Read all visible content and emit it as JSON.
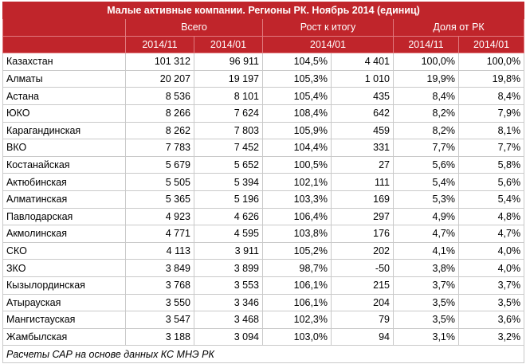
{
  "title": "Малые активные компании. Регионы РК. Ноябрь 2014 (единиц)",
  "groups": {
    "total": "Всего",
    "growth": "Рост к итогу",
    "share": "Доля от РК"
  },
  "subheaders": [
    "2014/11",
    "2014/01",
    "2014/01",
    "2014/11",
    "2014/01"
  ],
  "rows": [
    {
      "region": "Казахстан",
      "v1": "101 312",
      "v2": "96 911",
      "pct": "104,5%",
      "diff": "4 401",
      "s1": "100,0%",
      "s2": "100,0%"
    },
    {
      "region": "Алматы",
      "v1": "20 207",
      "v2": "19 197",
      "pct": "105,3%",
      "diff": "1 010",
      "s1": "19,9%",
      "s2": "19,8%"
    },
    {
      "region": "Астана",
      "v1": "8 536",
      "v2": "8 101",
      "pct": "105,4%",
      "diff": "435",
      "s1": "8,4%",
      "s2": "8,4%"
    },
    {
      "region": "ЮКО",
      "v1": "8 266",
      "v2": "7 624",
      "pct": "108,4%",
      "diff": "642",
      "s1": "8,2%",
      "s2": "7,9%"
    },
    {
      "region": "Карагандинская",
      "v1": "8 262",
      "v2": "7 803",
      "pct": "105,9%",
      "diff": "459",
      "s1": "8,2%",
      "s2": "8,1%"
    },
    {
      "region": "ВКО",
      "v1": "7 783",
      "v2": "7 452",
      "pct": "104,4%",
      "diff": "331",
      "s1": "7,7%",
      "s2": "7,7%"
    },
    {
      "region": "Костанайская",
      "v1": "5 679",
      "v2": "5 652",
      "pct": "100,5%",
      "diff": "27",
      "s1": "5,6%",
      "s2": "5,8%"
    },
    {
      "region": "Актюбинская",
      "v1": "5 505",
      "v2": "5 394",
      "pct": "102,1%",
      "diff": "111",
      "s1": "5,4%",
      "s2": "5,6%"
    },
    {
      "region": "Алматинская",
      "v1": "5 365",
      "v2": "5 196",
      "pct": "103,3%",
      "diff": "169",
      "s1": "5,3%",
      "s2": "5,4%"
    },
    {
      "region": "Павлодарская",
      "v1": "4 923",
      "v2": "4 626",
      "pct": "106,4%",
      "diff": "297",
      "s1": "4,9%",
      "s2": "4,8%"
    },
    {
      "region": "Акмолинская",
      "v1": "4 771",
      "v2": "4 595",
      "pct": "103,8%",
      "diff": "176",
      "s1": "4,7%",
      "s2": "4,7%"
    },
    {
      "region": "СКО",
      "v1": "4 113",
      "v2": "3 911",
      "pct": "105,2%",
      "diff": "202",
      "s1": "4,1%",
      "s2": "4,0%"
    },
    {
      "region": "ЗКО",
      "v1": "3 849",
      "v2": "3 899",
      "pct": "98,7%",
      "diff": "-50",
      "s1": "3,8%",
      "s2": "4,0%"
    },
    {
      "region": "Кызылординская",
      "v1": "3 768",
      "v2": "3 553",
      "pct": "106,1%",
      "diff": "215",
      "s1": "3,7%",
      "s2": "3,7%"
    },
    {
      "region": "Атырауская",
      "v1": "3 550",
      "v2": "3 346",
      "pct": "106,1%",
      "diff": "204",
      "s1": "3,5%",
      "s2": "3,5%"
    },
    {
      "region": "Мангистауская",
      "v1": "3 547",
      "v2": "3 468",
      "pct": "102,3%",
      "diff": "79",
      "s1": "3,5%",
      "s2": "3,6%"
    },
    {
      "region": "Жамбылская",
      "v1": "3 188",
      "v2": "3 094",
      "pct": "103,0%",
      "diff": "94",
      "s1": "3,1%",
      "s2": "3,2%"
    }
  ],
  "footer": "Расчеты САР на основе данных КС МНЭ РК",
  "colors": {
    "header_bg": "#c0252b",
    "header_text": "#ffffff",
    "grid": "#c9c9c9"
  }
}
